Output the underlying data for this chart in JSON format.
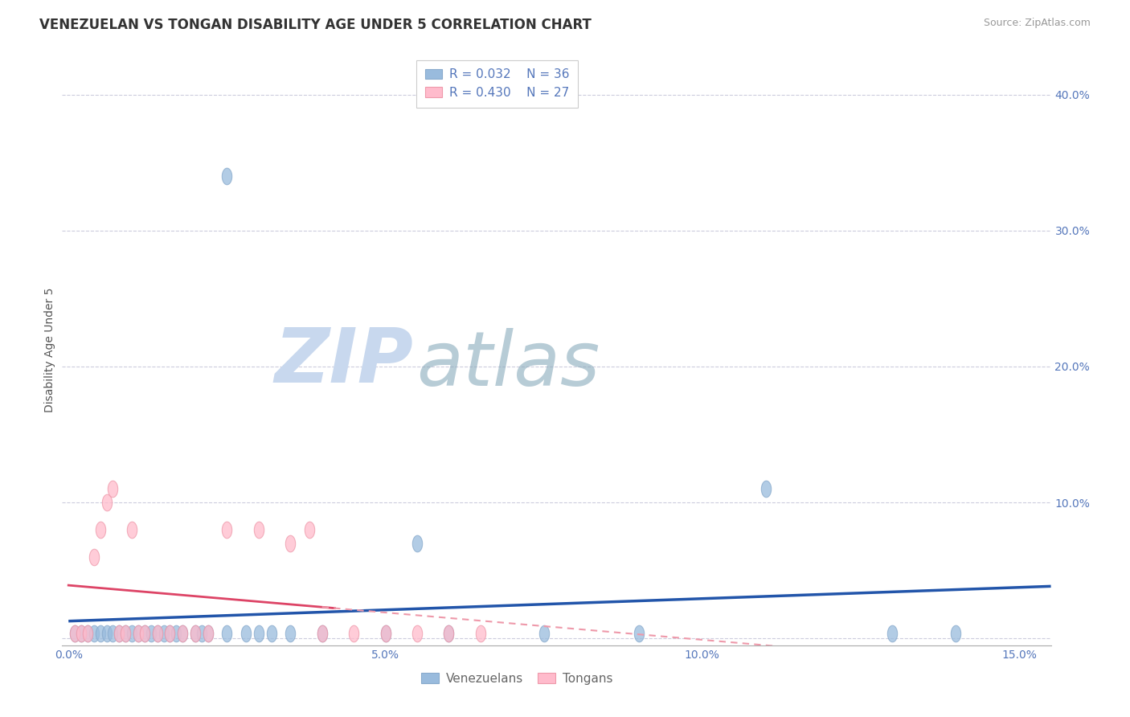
{
  "title": "VENEZUELAN VS TONGAN DISABILITY AGE UNDER 5 CORRELATION CHART",
  "source": "Source: ZipAtlas.com",
  "ylabel": "Disability Age Under 5",
  "xlim": [
    -0.001,
    0.155
  ],
  "ylim": [
    -0.005,
    0.43
  ],
  "ytick_vals": [
    0.0,
    0.1,
    0.2,
    0.3,
    0.4
  ],
  "ytick_labels": [
    "",
    "10.0%",
    "20.0%",
    "30.0%",
    "40.0%"
  ],
  "xtick_vals": [
    0.0,
    0.05,
    0.1,
    0.15
  ],
  "xtick_labels": [
    "0.0%",
    "5.0%",
    "10.0%",
    "15.0%"
  ],
  "legend_R_blue": "R = 0.032",
  "legend_N_blue": "N = 36",
  "legend_R_pink": "R = 0.430",
  "legend_N_pink": "N = 27",
  "blue_scatter_color": "#99BBDD",
  "blue_scatter_edge": "#88AACC",
  "pink_scatter_color": "#FFBBCC",
  "pink_scatter_edge": "#EE99AA",
  "blue_line_color": "#2255AA",
  "pink_line_color": "#DD4466",
  "pink_dash_color": "#EE99AA",
  "background_color": "#FFFFFF",
  "grid_color": "#CCCCDD",
  "title_color": "#333333",
  "tick_color": "#5577BB",
  "source_color": "#999999",
  "watermark_zip_color": "#C8D8EE",
  "watermark_atlas_color": "#88AABB",
  "blue_x": [
    0.001,
    0.002,
    0.003,
    0.004,
    0.005,
    0.006,
    0.007,
    0.008,
    0.009,
    0.01,
    0.011,
    0.012,
    0.013,
    0.014,
    0.015,
    0.016,
    0.017,
    0.018,
    0.02,
    0.021,
    0.022,
    0.025,
    0.028,
    0.03,
    0.032,
    0.035,
    0.04,
    0.05,
    0.055,
    0.06,
    0.075,
    0.09,
    0.11,
    0.13,
    0.14,
    0.025
  ],
  "blue_y": [
    0.004,
    0.004,
    0.004,
    0.004,
    0.004,
    0.004,
    0.004,
    0.004,
    0.004,
    0.004,
    0.004,
    0.004,
    0.004,
    0.004,
    0.004,
    0.004,
    0.004,
    0.004,
    0.004,
    0.004,
    0.004,
    0.004,
    0.004,
    0.004,
    0.004,
    0.004,
    0.004,
    0.004,
    0.07,
    0.004,
    0.004,
    0.004,
    0.11,
    0.004,
    0.004,
    0.34
  ],
  "pink_x": [
    0.001,
    0.002,
    0.003,
    0.004,
    0.005,
    0.006,
    0.007,
    0.008,
    0.009,
    0.01,
    0.011,
    0.012,
    0.014,
    0.016,
    0.018,
    0.02,
    0.022,
    0.025,
    0.03,
    0.035,
    0.038,
    0.04,
    0.045,
    0.05,
    0.055,
    0.06,
    0.065
  ],
  "pink_y": [
    0.004,
    0.004,
    0.004,
    0.06,
    0.08,
    0.1,
    0.11,
    0.004,
    0.004,
    0.08,
    0.004,
    0.004,
    0.004,
    0.004,
    0.004,
    0.004,
    0.004,
    0.08,
    0.08,
    0.07,
    0.08,
    0.004,
    0.004,
    0.004,
    0.004,
    0.004,
    0.004
  ],
  "title_fontsize": 12,
  "tick_fontsize": 10,
  "legend_fontsize": 11,
  "source_fontsize": 9,
  "ylabel_fontsize": 10
}
